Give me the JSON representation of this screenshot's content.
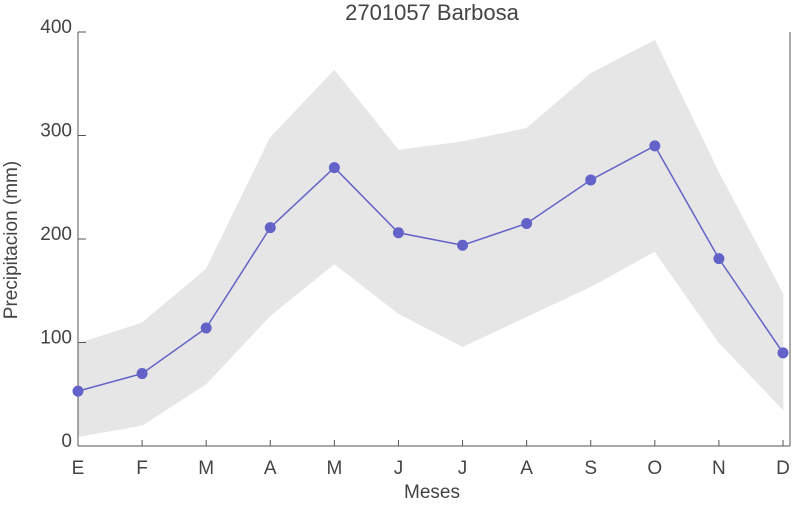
{
  "chart_data": {
    "type": "line",
    "title": "2701057 Barbosa",
    "xlabel": "Meses",
    "ylabel": "Precipitacion (mm)",
    "categories": [
      "E",
      "F",
      "M",
      "A",
      "M",
      "J",
      "J",
      "A",
      "S",
      "O",
      "N",
      "D"
    ],
    "values": [
      53,
      70,
      114,
      211,
      269,
      206,
      194,
      215,
      257,
      290,
      181,
      90
    ],
    "band_upper": [
      99,
      119,
      171,
      298,
      363,
      286,
      294,
      307,
      360,
      392,
      264,
      147
    ],
    "band_lower": [
      9,
      20,
      60,
      126,
      176,
      128,
      96,
      125,
      154,
      188,
      100,
      35
    ],
    "color": "#6262c8",
    "band_color": "#e6e6e6",
    "ylim": [
      0,
      400
    ],
    "yticks": [
      0,
      100,
      200,
      300,
      400
    ]
  }
}
